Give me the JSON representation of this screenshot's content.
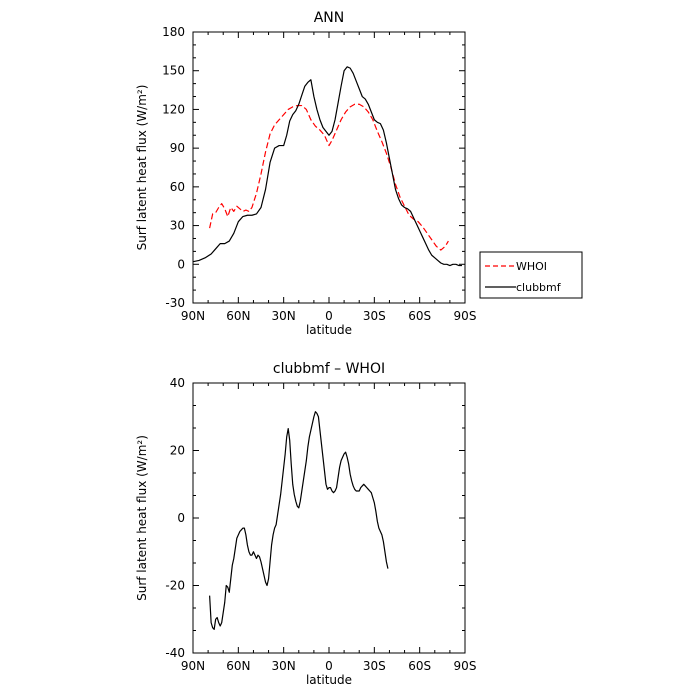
{
  "chart_data": [
    {
      "type": "line",
      "title": "ANN",
      "xlabel": "latitude",
      "ylabel": "Surf latent heat flux (W/m²)",
      "xlim": [
        -90,
        90
      ],
      "ylim": [
        -30,
        180
      ],
      "xticks": [
        {
          "value": -90,
          "label": "90N"
        },
        {
          "value": -60,
          "label": "60N"
        },
        {
          "value": -30,
          "label": "30N"
        },
        {
          "value": 0,
          "label": "0"
        },
        {
          "value": 30,
          "label": "30S"
        },
        {
          "value": 60,
          "label": "60S"
        },
        {
          "value": 90,
          "label": "90S"
        }
      ],
      "yticks": [
        -30,
        0,
        30,
        60,
        90,
        120,
        150,
        180
      ],
      "legend": {
        "placement": "outside-right"
      },
      "series": [
        {
          "name": "WHOI",
          "color": "#ff0000",
          "dash": "dashed",
          "points": [
            [
              -79,
              28
            ],
            [
              -77,
              39
            ],
            [
              -75,
              40
            ],
            [
              -73,
              44
            ],
            [
              -71,
              47
            ],
            [
              -69,
              43
            ],
            [
              -67,
              37
            ],
            [
              -65,
              44
            ],
            [
              -63,
              41
            ],
            [
              -61,
              45
            ],
            [
              -59,
              43
            ],
            [
              -57,
              41
            ],
            [
              -55,
              42
            ],
            [
              -53,
              41
            ],
            [
              -51,
              44
            ],
            [
              -48,
              55
            ],
            [
              -45,
              70
            ],
            [
              -42,
              87
            ],
            [
              -39,
              101
            ],
            [
              -36,
              108
            ],
            [
              -33,
              112
            ],
            [
              -30,
              116
            ],
            [
              -27,
              120
            ],
            [
              -24,
              122
            ],
            [
              -21,
              123
            ],
            [
              -18,
              123
            ],
            [
              -15,
              120
            ],
            [
              -12,
              112
            ],
            [
              -9,
              107
            ],
            [
              -6,
              104
            ],
            [
              -3,
              100
            ],
            [
              0,
              92
            ],
            [
              2,
              96
            ],
            [
              5,
              104
            ],
            [
              8,
              112
            ],
            [
              11,
              118
            ],
            [
              14,
              122
            ],
            [
              17,
              124
            ],
            [
              20,
              124
            ],
            [
              23,
              122
            ],
            [
              26,
              118
            ],
            [
              29,
              112
            ],
            [
              32,
              103
            ],
            [
              35,
              95
            ],
            [
              38,
              86
            ],
            [
              41,
              75
            ],
            [
              44,
              62
            ],
            [
              47,
              52
            ],
            [
              50,
              45
            ],
            [
              53,
              38
            ],
            [
              56,
              35
            ],
            [
              59,
              33
            ],
            [
              62,
              29
            ],
            [
              65,
              24
            ],
            [
              68,
              19
            ],
            [
              71,
              14
            ],
            [
              74,
              11
            ],
            [
              77,
              14
            ],
            [
              79,
              18
            ]
          ]
        },
        {
          "name": "clubbmf",
          "color": "#000000",
          "dash": "solid",
          "points": [
            [
              -90,
              2
            ],
            [
              -86,
              3
            ],
            [
              -82,
              5
            ],
            [
              -78,
              8
            ],
            [
              -75,
              12
            ],
            [
              -72,
              16
            ],
            [
              -69,
              16
            ],
            [
              -66,
              18
            ],
            [
              -63,
              24
            ],
            [
              -60,
              33
            ],
            [
              -57,
              37
            ],
            [
              -54,
              38
            ],
            [
              -51,
              38
            ],
            [
              -48,
              39
            ],
            [
              -45,
              44
            ],
            [
              -42,
              58
            ],
            [
              -39,
              79
            ],
            [
              -36,
              90
            ],
            [
              -33,
              92
            ],
            [
              -30,
              92
            ],
            [
              -28,
              100
            ],
            [
              -26,
              111
            ],
            [
              -24,
              116
            ],
            [
              -22,
              119
            ],
            [
              -20,
              124
            ],
            [
              -18,
              131
            ],
            [
              -16,
              138
            ],
            [
              -14,
              141
            ],
            [
              -12,
              143
            ],
            [
              -10,
              130
            ],
            [
              -8,
              120
            ],
            [
              -6,
              112
            ],
            [
              -4,
              106
            ],
            [
              -2,
              103
            ],
            [
              0,
              100
            ],
            [
              2,
              103
            ],
            [
              4,
              112
            ],
            [
              6,
              125
            ],
            [
              8,
              138
            ],
            [
              10,
              150
            ],
            [
              12,
              153
            ],
            [
              14,
              152
            ],
            [
              16,
              148
            ],
            [
              18,
              142
            ],
            [
              20,
              136
            ],
            [
              22,
              130
            ],
            [
              24,
              128
            ],
            [
              26,
              124
            ],
            [
              28,
              118
            ],
            [
              30,
              112
            ],
            [
              32,
              110
            ],
            [
              34,
              109
            ],
            [
              36,
              104
            ],
            [
              38,
              94
            ],
            [
              40,
              82
            ],
            [
              42,
              70
            ],
            [
              44,
              58
            ],
            [
              46,
              51
            ],
            [
              48,
              46
            ],
            [
              50,
              44
            ],
            [
              52,
              43
            ],
            [
              54,
              41
            ],
            [
              56,
              36
            ],
            [
              58,
              31
            ],
            [
              60,
              26
            ],
            [
              62,
              21
            ],
            [
              64,
              16
            ],
            [
              66,
              11
            ],
            [
              68,
              7
            ],
            [
              70,
              5
            ],
            [
              72,
              3
            ],
            [
              74,
              1
            ],
            [
              76,
              0
            ],
            [
              78,
              0
            ],
            [
              80,
              -1
            ],
            [
              82,
              0
            ],
            [
              84,
              0
            ],
            [
              86,
              -1
            ],
            [
              88,
              -1
            ]
          ]
        }
      ]
    },
    {
      "type": "line",
      "title": "clubbmf – WHOI",
      "xlabel": "latitude",
      "ylabel": "Surf latent heat flux (W/m²)",
      "xlim": [
        -90,
        90
      ],
      "ylim": [
        -40,
        40
      ],
      "xticks": [
        {
          "value": -90,
          "label": "90N"
        },
        {
          "value": -60,
          "label": "60N"
        },
        {
          "value": -30,
          "label": "30N"
        },
        {
          "value": 0,
          "label": "0"
        },
        {
          "value": 30,
          "label": "30S"
        },
        {
          "value": 60,
          "label": "60S"
        },
        {
          "value": 90,
          "label": "90S"
        }
      ],
      "yticks": [
        -40,
        -20,
        0,
        20,
        40
      ],
      "series": [
        {
          "color": "#000000",
          "dash": "solid",
          "points": [
            [
              -79,
              -23
            ],
            [
              -78,
              -31
            ],
            [
              -77,
              -32.5
            ],
            [
              -76,
              -33
            ],
            [
              -75,
              -30
            ],
            [
              -74,
              -29.5
            ],
            [
              -73,
              -31
            ],
            [
              -72,
              -32
            ],
            [
              -71,
              -31
            ],
            [
              -70,
              -28
            ],
            [
              -69,
              -25
            ],
            [
              -68,
              -20
            ],
            [
              -67,
              -20.5
            ],
            [
              -66,
              -22
            ],
            [
              -65,
              -18
            ],
            [
              -64,
              -14
            ],
            [
              -63,
              -12
            ],
            [
              -62,
              -9
            ],
            [
              -61,
              -6
            ],
            [
              -60,
              -5
            ],
            [
              -59,
              -4
            ],
            [
              -58,
              -3.5
            ],
            [
              -57,
              -3
            ],
            [
              -56,
              -3
            ],
            [
              -55,
              -5
            ],
            [
              -54,
              -8
            ],
            [
              -53,
              -10
            ],
            [
              -52,
              -11
            ],
            [
              -51,
              -11
            ],
            [
              -50,
              -10
            ],
            [
              -49,
              -11
            ],
            [
              -48,
              -12
            ],
            [
              -47,
              -11
            ],
            [
              -46,
              -11.5
            ],
            [
              -45,
              -13
            ],
            [
              -44,
              -15
            ],
            [
              -43,
              -17
            ],
            [
              -42,
              -19
            ],
            [
              -41,
              -20
            ],
            [
              -40,
              -18
            ],
            [
              -39,
              -13
            ],
            [
              -38,
              -8
            ],
            [
              -37,
              -5
            ],
            [
              -36,
              -3
            ],
            [
              -35,
              -2
            ],
            [
              -34,
              1
            ],
            [
              -33,
              4
            ],
            [
              -32,
              7
            ],
            [
              -31,
              11
            ],
            [
              -30,
              15
            ],
            [
              -29,
              19
            ],
            [
              -28,
              24
            ],
            [
              -27,
              26.5
            ],
            [
              -26,
              23
            ],
            [
              -25,
              16
            ],
            [
              -24,
              10
            ],
            [
              -23,
              7
            ],
            [
              -22,
              5
            ],
            [
              -21,
              3.5
            ],
            [
              -20,
              3
            ],
            [
              -19,
              5
            ],
            [
              -18,
              8
            ],
            [
              -17,
              11
            ],
            [
              -16,
              14
            ],
            [
              -15,
              17
            ],
            [
              -14,
              21
            ],
            [
              -13,
              24
            ],
            [
              -12,
              26
            ],
            [
              -11,
              28
            ],
            [
              -10,
              30
            ],
            [
              -9,
              31.5
            ],
            [
              -8,
              31
            ],
            [
              -7,
              30
            ],
            [
              -6,
              26
            ],
            [
              -5,
              22
            ],
            [
              -4,
              18
            ],
            [
              -3,
              14
            ],
            [
              -2,
              10
            ],
            [
              -1,
              8.5
            ],
            [
              0,
              9
            ],
            [
              1,
              9
            ],
            [
              2,
              8
            ],
            [
              3,
              7.5
            ],
            [
              4,
              8
            ],
            [
              5,
              9
            ],
            [
              6,
              12
            ],
            [
              7,
              15
            ],
            [
              8,
              17
            ],
            [
              9,
              18
            ],
            [
              10,
              19
            ],
            [
              11,
              19.5
            ],
            [
              12,
              18
            ],
            [
              13,
              16
            ],
            [
              14,
              13
            ],
            [
              15,
              11
            ],
            [
              16,
              9.5
            ],
            [
              17,
              8.5
            ],
            [
              18,
              8
            ],
            [
              19,
              8
            ],
            [
              20,
              8
            ],
            [
              21,
              9
            ],
            [
              22,
              9.5
            ],
            [
              23,
              10
            ],
            [
              24,
              9.5
            ],
            [
              25,
              9
            ],
            [
              26,
              8.5
            ],
            [
              27,
              8
            ],
            [
              28,
              7.5
            ],
            [
              29,
              6
            ],
            [
              30,
              4.5
            ],
            [
              31,
              2
            ],
            [
              32,
              -1
            ],
            [
              33,
              -3
            ],
            [
              34,
              -4
            ],
            [
              35,
              -5
            ],
            [
              36,
              -7
            ],
            [
              37,
              -10
            ],
            [
              38,
              -13
            ],
            [
              39,
              -15
            ]
          ]
        }
      ]
    }
  ]
}
